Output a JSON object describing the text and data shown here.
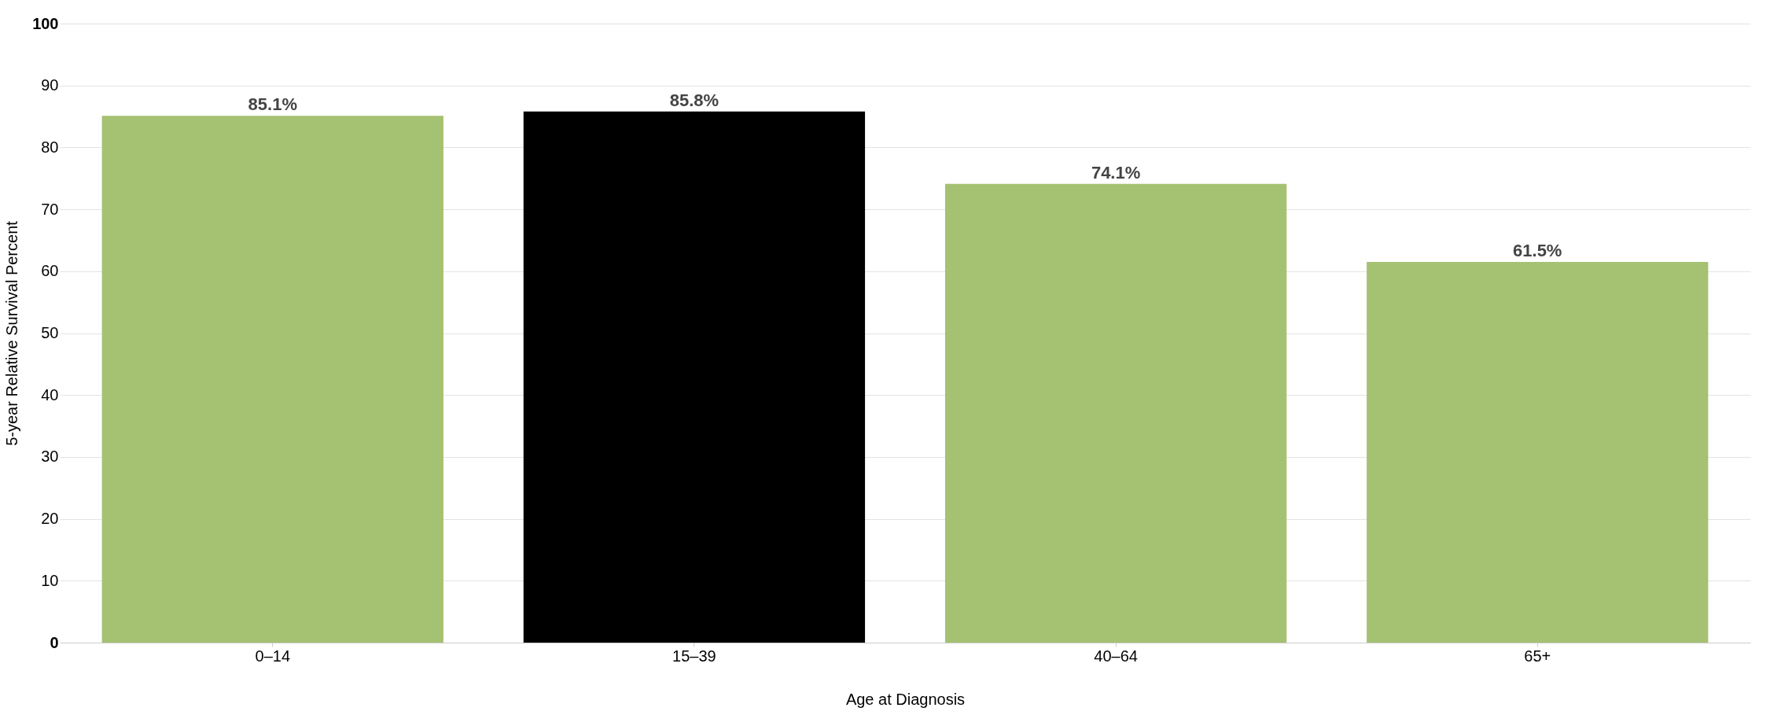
{
  "chart_data": {
    "type": "bar",
    "xlabel": "Age at Diagnosis",
    "ylabel": "5-year Relative Survival Percent",
    "categories": [
      "0–14",
      "15–39",
      "40–64",
      "65+"
    ],
    "values": [
      85.1,
      85.8,
      74.1,
      61.5
    ],
    "colors": [
      "#a5c172",
      "#000000",
      "#a5c172",
      "#a5c172"
    ],
    "value_labels": [
      "85.1%",
      "85.8%",
      "74.1%",
      "61.5%"
    ],
    "ylim": [
      0,
      100
    ],
    "yticks": [
      0,
      10,
      20,
      30,
      40,
      50,
      60,
      70,
      80,
      90,
      100
    ],
    "grid": "y"
  }
}
